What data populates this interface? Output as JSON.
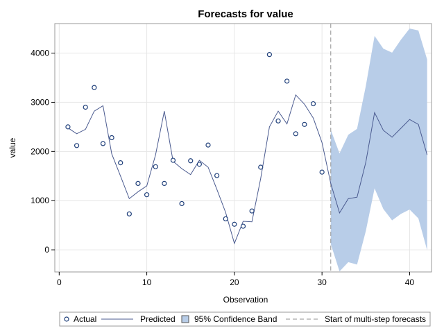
{
  "chart_data": {
    "type": "line",
    "title": "Forecasts for value",
    "xlabel": "Observation",
    "ylabel": "value",
    "xlim": [
      -0.5,
      42.5
    ],
    "ylim": [
      -450,
      4600
    ],
    "xticks": [
      0,
      10,
      20,
      30,
      40
    ],
    "yticks": [
      0,
      1000,
      2000,
      3000,
      4000
    ],
    "grid": true,
    "forecast_start": 31,
    "actual": {
      "x": [
        1,
        2,
        3,
        4,
        5,
        6,
        7,
        8,
        9,
        10,
        11,
        12,
        13,
        14,
        15,
        16,
        17,
        18,
        19,
        20,
        21,
        22,
        23,
        24,
        25,
        26,
        27,
        28,
        29,
        30
      ],
      "y": [
        2500,
        2120,
        2900,
        3300,
        2160,
        2280,
        1770,
        730,
        1350,
        1120,
        1690,
        1350,
        1820,
        940,
        1810,
        1740,
        2130,
        1510,
        630,
        520,
        480,
        790,
        1680,
        3970,
        2620,
        3430,
        2360,
        2550,
        2970,
        1580
      ]
    },
    "predicted": {
      "x": [
        1,
        2,
        3,
        4,
        5,
        6,
        7,
        8,
        9,
        10,
        11,
        12,
        13,
        14,
        15,
        16,
        17,
        18,
        19,
        20,
        21,
        22,
        23,
        24,
        25,
        26,
        27,
        28,
        29,
        30,
        31,
        32,
        33,
        34,
        35,
        36,
        37,
        38,
        39,
        40,
        41,
        42
      ],
      "y": [
        2480,
        2360,
        2450,
        2820,
        2930,
        1950,
        1500,
        1040,
        1180,
        1300,
        1930,
        2820,
        1800,
        1650,
        1530,
        1820,
        1680,
        1230,
        760,
        130,
        580,
        570,
        1450,
        2500,
        2820,
        2560,
        3150,
        2960,
        2680,
        2180,
        1350,
        750,
        1040,
        1070,
        1780,
        2790,
        2430,
        2290,
        2470,
        2650,
        2550,
        1930
      ]
    },
    "confidence_band": {
      "x": [
        31,
        32,
        33,
        34,
        35,
        36,
        37,
        38,
        39,
        40,
        41,
        42
      ],
      "lower": [
        120,
        -440,
        -250,
        -300,
        380,
        1250,
        830,
        600,
        730,
        820,
        640,
        -10
      ],
      "upper": [
        2440,
        1960,
        2340,
        2460,
        3330,
        4350,
        4090,
        4010,
        4270,
        4500,
        4460,
        3870
      ]
    },
    "legend": {
      "position": "bottom",
      "entries": [
        {
          "label": "Actual",
          "kind": "marker"
        },
        {
          "label": "Predicted",
          "kind": "line"
        },
        {
          "label": "95% Confidence Band",
          "kind": "band"
        },
        {
          "label": "Start of multi-step forecasts",
          "kind": "dashed"
        }
      ]
    },
    "colors": {
      "marker": "#1f3f7a",
      "line": "#4a5a8f",
      "band": "#b8cde8",
      "grid": "#e6e6e6",
      "frame": "#999999",
      "refline": "#909090"
    }
  }
}
